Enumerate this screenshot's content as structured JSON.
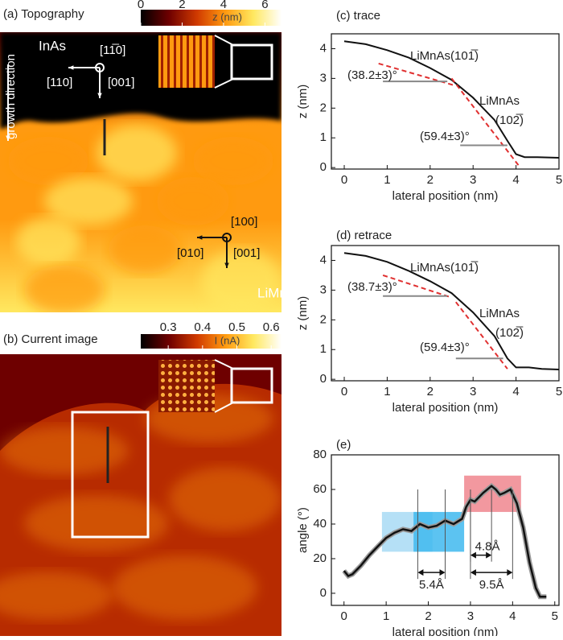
{
  "chart_data": [
    {
      "type": "image",
      "title": "(a) Topography",
      "colorbar": {
        "label": "z (nm)",
        "lim": [
          0,
          6.8
        ],
        "ticks": [
          0,
          2,
          4,
          6
        ],
        "colors": [
          "#000000",
          "#6e0000",
          "#d03a00",
          "#ff9a10",
          "#ffe860",
          "#ffffff"
        ]
      },
      "annotations": [
        "InAs",
        "[11̅0]",
        "[110]",
        "[001]",
        "growth direction",
        "[100]",
        "[010]",
        "[001]",
        "LiMnAs"
      ]
    },
    {
      "type": "image",
      "title": "(b) Current image",
      "colorbar": {
        "label": "I (nA)",
        "lim": [
          0.22,
          0.63
        ],
        "ticks": [
          0.3,
          0.4,
          0.5,
          0.6
        ],
        "colors": [
          "#000000",
          "#6e0000",
          "#d03a00",
          "#ff9a10",
          "#ffe860",
          "#ffffff"
        ]
      },
      "annotations": []
    },
    {
      "type": "line",
      "title": "(c) trace",
      "xlabel": "lateral position (nm)",
      "ylabel": "z (nm)",
      "xlim": [
        -0.3,
        5
      ],
      "ylim": [
        -0.05,
        4.5
      ],
      "xticks": [
        0,
        1,
        2,
        3,
        4,
        5
      ],
      "yticks": [
        0,
        1,
        2,
        3,
        4
      ],
      "series": [
        {
          "color": "#111111",
          "x": [
            0,
            0.5,
            1,
            1.5,
            2,
            2.5,
            3,
            3.5,
            3.8,
            4,
            4.2,
            4.5,
            5
          ],
          "values": [
            4.25,
            4.15,
            3.95,
            3.7,
            3.35,
            2.95,
            2.35,
            1.6,
            0.9,
            0.45,
            0.35,
            0.35,
            0.33
          ]
        },
        {
          "color": "#e03030",
          "dash": true,
          "x": [
            0.8,
            2.6
          ],
          "values": [
            3.5,
            2.75
          ]
        },
        {
          "color": "#e03030",
          "dash": true,
          "x": [
            2.5,
            4.1
          ],
          "values": [
            3.0,
            0
          ]
        },
        {
          "color": "#888888",
          "x": [
            0.9,
            2.4
          ],
          "values": [
            2.9,
            2.9
          ]
        },
        {
          "color": "#888888",
          "x": [
            2.7,
            3.8
          ],
          "values": [
            0.75,
            0.75
          ]
        }
      ],
      "annotations": [
        "LiMnAs(101̅)",
        "(38.2±3)°",
        "LiMnAs",
        "(102̅)",
        "(59.4±3)°"
      ]
    },
    {
      "type": "line",
      "title": "(d) retrace",
      "xlabel": "lateral position (nm)",
      "ylabel": "z (nm)",
      "xlim": [
        -0.3,
        5
      ],
      "ylim": [
        -0.05,
        4.5
      ],
      "xticks": [
        0,
        1,
        2,
        3,
        4,
        5
      ],
      "yticks": [
        0,
        1,
        2,
        3,
        4
      ],
      "series": [
        {
          "color": "#111111",
          "x": [
            0,
            0.5,
            1,
            1.5,
            2,
            2.5,
            3,
            3.5,
            3.8,
            4,
            4.3,
            4.6,
            5
          ],
          "values": [
            4.25,
            4.15,
            3.95,
            3.65,
            3.3,
            2.9,
            2.25,
            1.45,
            0.7,
            0.4,
            0.4,
            0.35,
            0.33
          ]
        },
        {
          "color": "#e03030",
          "dash": true,
          "x": [
            0.9,
            2.5
          ],
          "values": [
            3.5,
            2.75
          ]
        },
        {
          "color": "#e03030",
          "dash": true,
          "x": [
            2.6,
            3.8
          ],
          "values": [
            2.6,
            0.35
          ]
        },
        {
          "color": "#888888",
          "x": [
            0.9,
            2.4
          ],
          "values": [
            2.8,
            2.8
          ]
        },
        {
          "color": "#888888",
          "x": [
            2.6,
            3.7
          ],
          "values": [
            0.7,
            0.7
          ]
        }
      ],
      "annotations": [
        "LiMnAs(101̅)",
        "(38.7±3)°",
        "LiMnAs",
        "(102̅)",
        "(59.4±3)°"
      ]
    },
    {
      "type": "line",
      "title": "(e)",
      "xlabel": "lateral position (nm)",
      "ylabel": "angle (°)",
      "xlim": [
        -0.3,
        5.1
      ],
      "ylim": [
        -7,
        80
      ],
      "xticks": [
        0,
        1,
        2,
        3,
        4,
        5
      ],
      "yticks": [
        0,
        20,
        40,
        60,
        80
      ],
      "regions": [
        {
          "x": [
            0.9,
            2.1
          ],
          "y": [
            24,
            47
          ],
          "color": "#a8daf5"
        },
        {
          "x": [
            1.65,
            2.85
          ],
          "y": [
            24,
            47
          ],
          "color": "#3fb8ee"
        },
        {
          "x": [
            2.85,
            4.2
          ],
          "y": [
            47,
            68
          ],
          "color": "#f0868e"
        }
      ],
      "series": [
        {
          "color": "#111111",
          "outline": "#9a9a9a",
          "x": [
            0,
            0.1,
            0.2,
            0.4,
            0.6,
            0.8,
            1.0,
            1.2,
            1.4,
            1.6,
            1.8,
            2.0,
            2.2,
            2.4,
            2.6,
            2.8,
            2.9,
            3.0,
            3.1,
            3.3,
            3.5,
            3.6,
            3.7,
            3.8,
            3.95,
            4.1,
            4.25,
            4.4,
            4.55,
            4.65,
            4.8
          ],
          "values": [
            13,
            10,
            11,
            16,
            22,
            27,
            32,
            35,
            37,
            36,
            40,
            38,
            39,
            42,
            40,
            43,
            50,
            54,
            53,
            58,
            62,
            60,
            57,
            58,
            60,
            52,
            38,
            18,
            3,
            -2,
            -2
          ]
        }
      ],
      "dimensions": [
        {
          "label": "5.4Å",
          "x": [
            1.75,
            2.4
          ],
          "y": 12
        },
        {
          "label": "9.5Å",
          "x": [
            3.0,
            4.0
          ],
          "y": 12
        },
        {
          "label": "4.8Å",
          "x": [
            3.0,
            3.5
          ],
          "y": 22
        }
      ]
    }
  ]
}
